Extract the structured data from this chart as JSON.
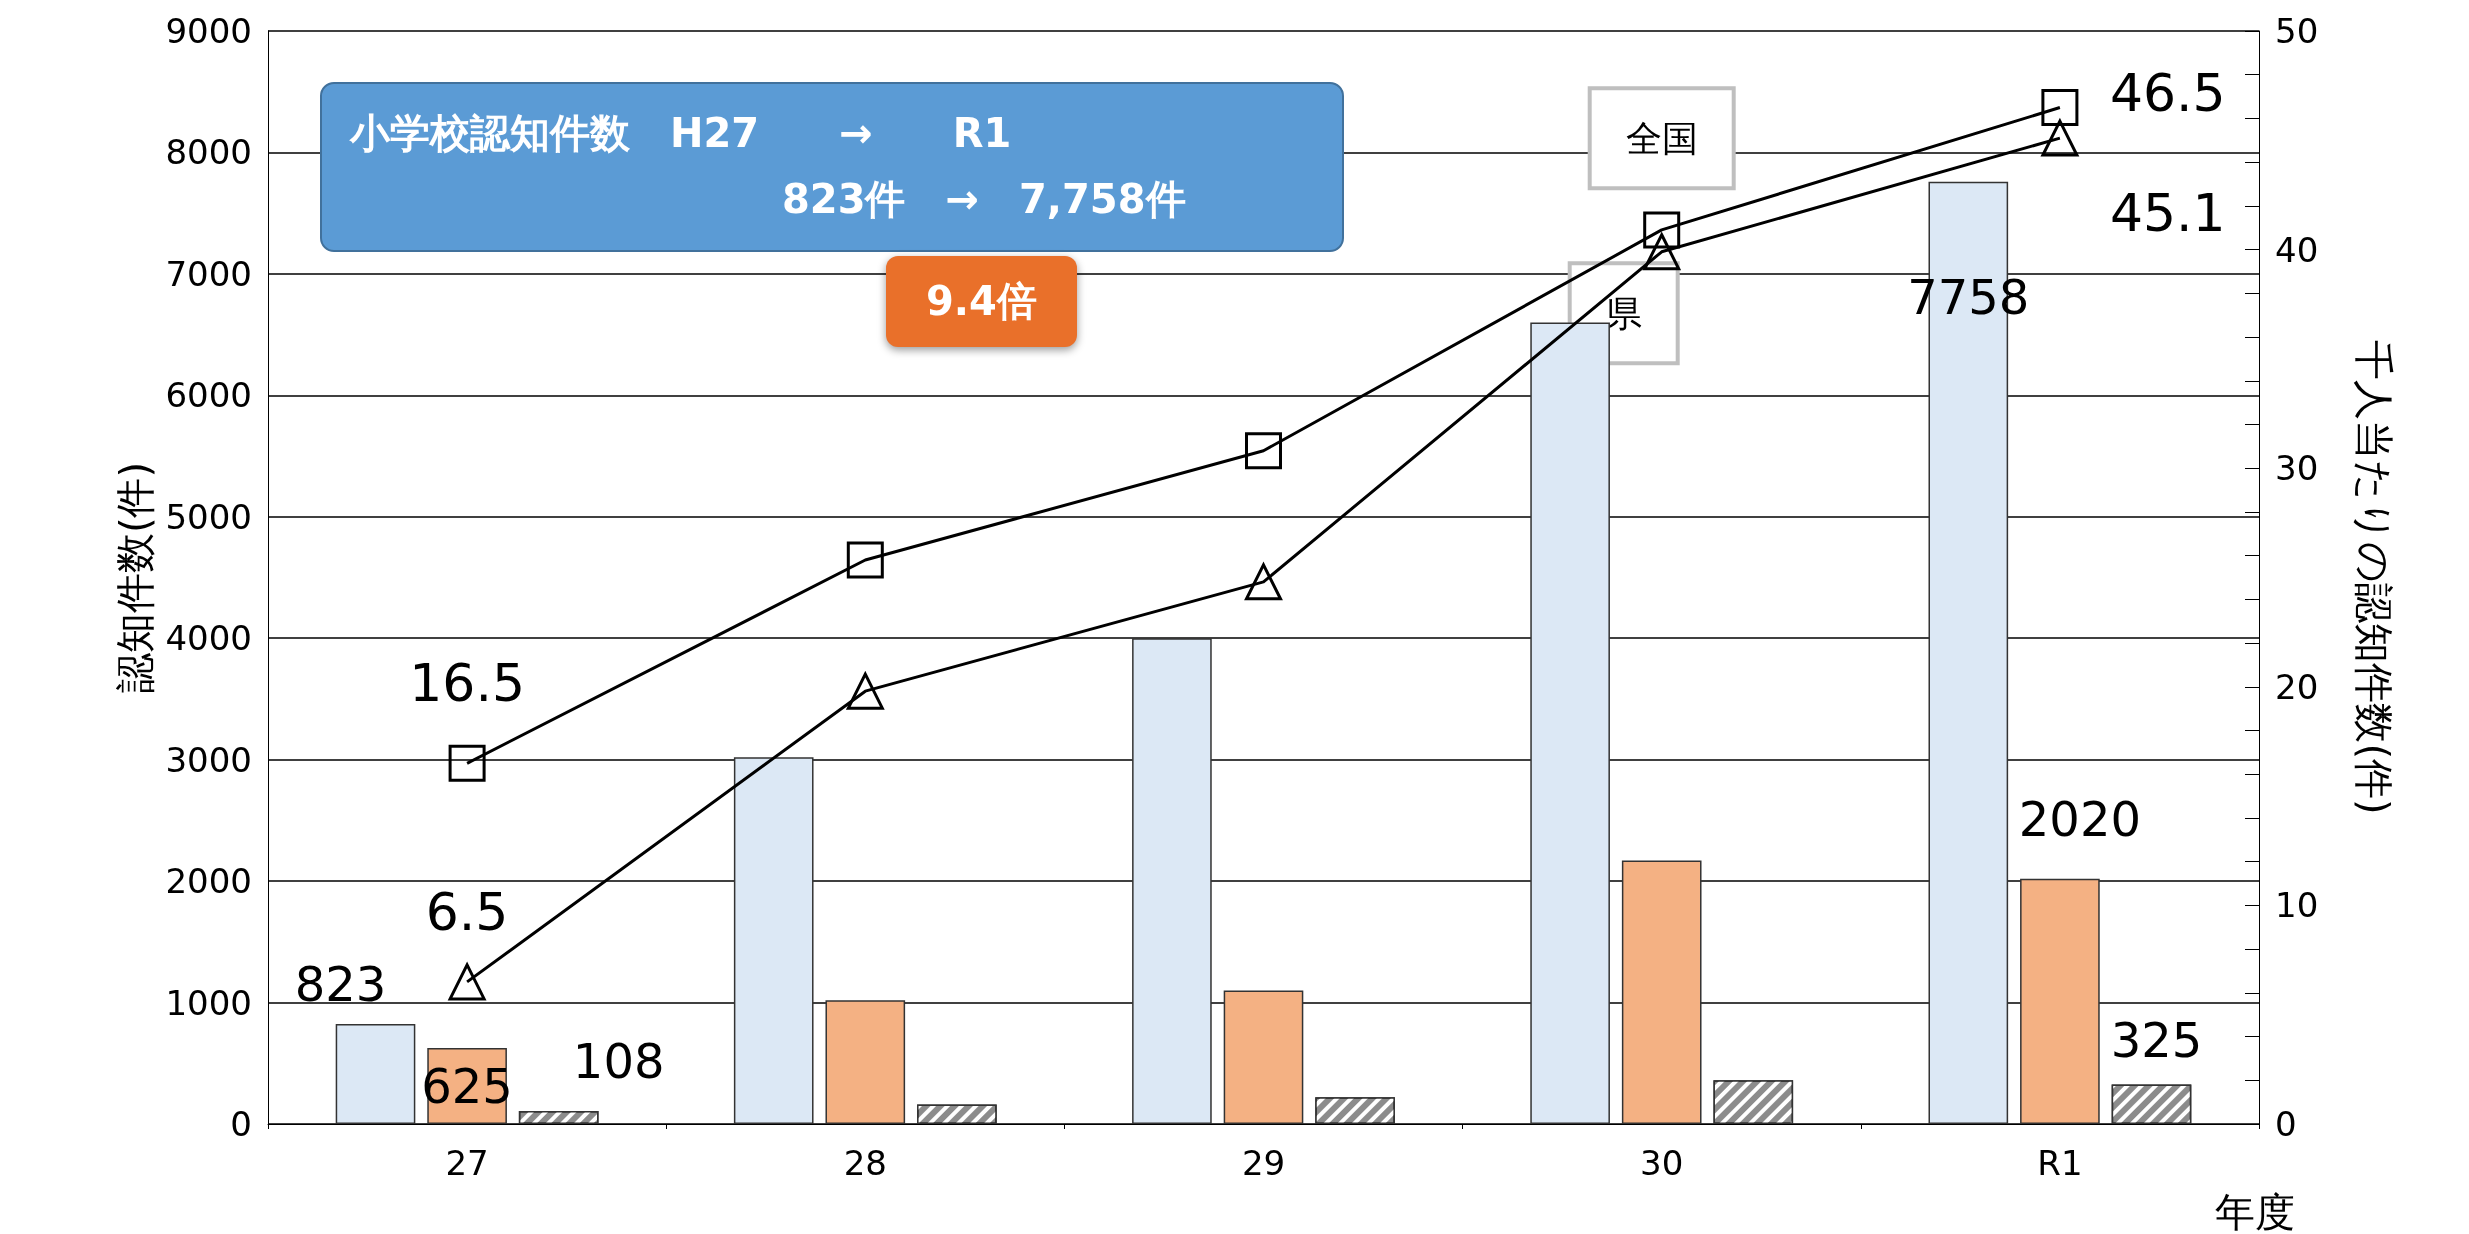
{
  "chart_data": {
    "type": "bar",
    "categories": [
      "27",
      "28",
      "29",
      "30",
      "R1"
    ],
    "series": [
      {
        "color": "#dce8f5",
        "values": [
          823,
          3020,
          4000,
          6600,
          7758
        ],
        "value_labels": [
          "823",
          null,
          null,
          null,
          "7758"
        ]
      },
      {
        "color": "#f4b183",
        "values": [
          625,
          1020,
          1100,
          2170,
          2020
        ],
        "value_labels": [
          "625",
          null,
          null,
          null,
          "2020"
        ]
      },
      {
        "color": "#8c8c8c",
        "values": [
          108,
          160,
          220,
          360,
          325
        ],
        "value_labels": [
          "108",
          null,
          null,
          null,
          "325"
        ]
      },
      {
        "type": "line",
        "name": "全国",
        "axis": "y2",
        "marker": "square",
        "color": "#000000",
        "values": [
          16.5,
          25.8,
          30.8,
          40.9,
          46.5
        ],
        "value_labels": [
          "16.5",
          null,
          null,
          null,
          "46.5"
        ]
      },
      {
        "type": "line",
        "name": "県",
        "axis": "y2",
        "marker": "triangle",
        "color": "#000000",
        "values": [
          6.5,
          19.8,
          24.8,
          39.9,
          45.1
        ],
        "value_labels": [
          "6.5",
          null,
          null,
          null,
          "45.1"
        ]
      }
    ],
    "ylabel": "認知件数(件)",
    "y2label": "千人当たりの認知件数(件)",
    "xlabel": "年度",
    "ylim": [
      0,
      9000
    ],
    "yticks": [
      0,
      1000,
      2000,
      3000,
      4000,
      5000,
      6000,
      7000,
      8000,
      9000
    ],
    "y2lim": [
      0,
      50
    ],
    "y2ticks": [
      0,
      {
        "value": 2,
        "label": null
      },
      {
        "value": 4,
        "label": null
      },
      {
        "value": 6,
        "label": null
      },
      {
        "value": 8,
        "label": null
      },
      10,
      {
        "value": 12,
        "label": null
      },
      {
        "value": 14,
        "label": null
      },
      {
        "value": 16,
        "label": null
      },
      {
        "value": 18,
        "label": null
      },
      20,
      {
        "value": 22,
        "label": null
      },
      {
        "value": 24,
        "label": null
      },
      {
        "value": 26,
        "label": null
      },
      {
        "value": 28,
        "label": null
      },
      30,
      {
        "value": 32,
        "label": null
      },
      {
        "value": 34,
        "label": null
      },
      {
        "value": 36,
        "label": null
      },
      {
        "value": 38,
        "label": null
      },
      40,
      {
        "value": 42,
        "label": null
      },
      {
        "value": 44,
        "label": null
      },
      {
        "value": 46,
        "label": null
      },
      {
        "value": 48,
        "label": null
      },
      50
    ],
    "grid": "y",
    "legend": false,
    "annotations": [
      "小学校認知件数　H27　　→　　R1",
      "823件　→　7,758件",
      "9.4倍"
    ]
  }
}
